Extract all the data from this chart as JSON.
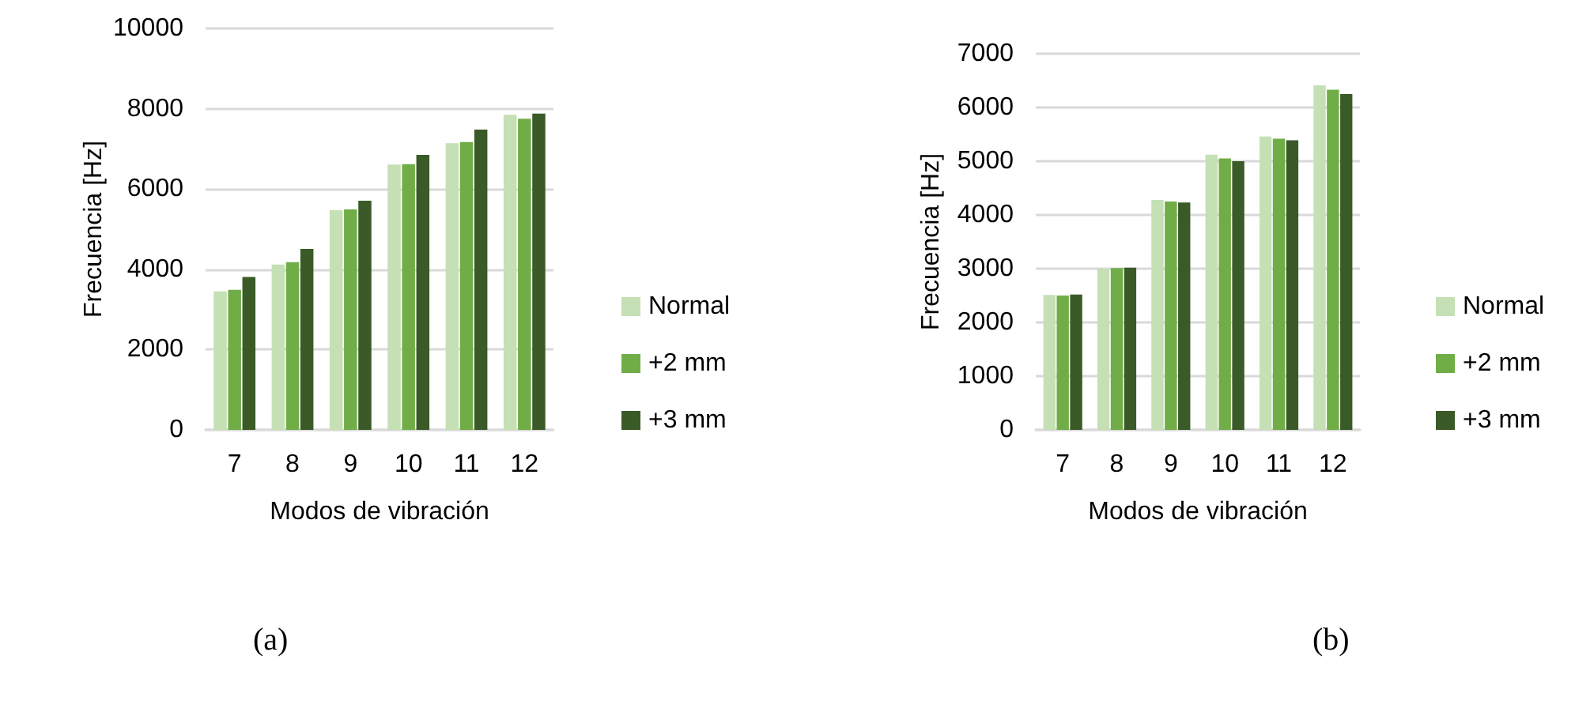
{
  "chart_data": [
    {
      "type": "bar",
      "categories": [
        "7",
        "8",
        "9",
        "10",
        "11",
        "12"
      ],
      "xlabel": "Modos de vibración",
      "ylabel": "Frecuencia [Hz]",
      "ylim": [
        0,
        10000
      ],
      "yticks": [
        0,
        2000,
        4000,
        6000,
        8000,
        10000
      ],
      "grid": "y",
      "legend": "right",
      "annotations": [
        "(a)"
      ],
      "series": [
        {
          "name": "Normal",
          "color": "#c5e0b4",
          "values": [
            3450,
            4120,
            5470,
            6610,
            7140,
            7850
          ]
        },
        {
          "name": "+2 mm",
          "color": "#70ad47",
          "values": [
            3490,
            4180,
            5490,
            6620,
            7170,
            7750
          ]
        },
        {
          "name": "+3 mm",
          "color": "#3a5a27",
          "values": [
            3810,
            4510,
            5710,
            6850,
            7480,
            7880
          ]
        }
      ]
    },
    {
      "type": "bar",
      "categories": [
        "7",
        "8",
        "9",
        "10",
        "11",
        "12"
      ],
      "xlabel": "Modos de vibración",
      "ylabel": "Frecuencia [Hz]",
      "ylim": [
        0,
        7000
      ],
      "yticks": [
        0,
        1000,
        2000,
        3000,
        4000,
        5000,
        6000,
        7000
      ],
      "grid": "y",
      "legend": "right",
      "annotations": [
        "(b)"
      ],
      "series": [
        {
          "name": "Normal",
          "color": "#c5e0b4",
          "values": [
            2510,
            3000,
            4280,
            5120,
            5460,
            6410
          ]
        },
        {
          "name": "+2 mm",
          "color": "#70ad47",
          "values": [
            2500,
            3010,
            4250,
            5050,
            5420,
            6330
          ]
        },
        {
          "name": "+3 mm",
          "color": "#3a5a27",
          "values": [
            2520,
            3020,
            4230,
            5000,
            5390,
            6250
          ]
        }
      ]
    }
  ]
}
